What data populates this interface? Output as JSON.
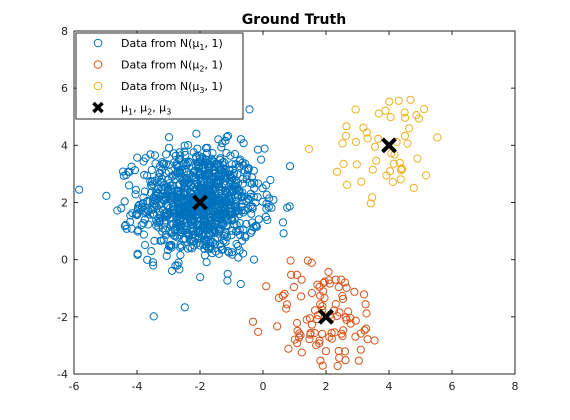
{
  "chart_data": {
    "type": "scatter",
    "title": "Ground Truth",
    "xlabel": "",
    "ylabel": "",
    "xlim": [
      -6,
      8
    ],
    "ylim": [
      -4,
      8
    ],
    "xticks": [
      -6,
      -4,
      -2,
      0,
      2,
      4,
      6,
      8
    ],
    "yticks": [
      -4,
      -2,
      0,
      2,
      4,
      6,
      8
    ],
    "grid": false,
    "legend_position": "top-left",
    "legend": [
      {
        "prefix": "Data from N(",
        "mu": "μ",
        "sub": "1",
        "suffix": ", 1)",
        "color": "#0072BD",
        "marker": "circle"
      },
      {
        "prefix": "Data from N(",
        "mu": "μ",
        "sub": "2",
        "suffix": ", 1)",
        "color": "#D95319",
        "marker": "circle"
      },
      {
        "prefix": "Data from N(",
        "mu": "μ",
        "sub": "3",
        "suffix": ", 1)",
        "color": "#EDB120",
        "marker": "circle"
      },
      {
        "mu_list": [
          "1",
          "2",
          "3"
        ],
        "color": "#000000",
        "marker": "x"
      }
    ],
    "series": [
      {
        "center": [
          -2,
          2
        ],
        "std": 1,
        "count": 1000,
        "color": "#0072BD"
      },
      {
        "center": [
          2,
          -2
        ],
        "std": 1,
        "count": 100,
        "color": "#D95319"
      },
      {
        "center": [
          4,
          4
        ],
        "std": 1,
        "count": 50,
        "color": "#EDB120"
      }
    ],
    "means": [
      [
        -2,
        2
      ],
      [
        2,
        -2
      ],
      [
        4,
        4
      ]
    ]
  }
}
